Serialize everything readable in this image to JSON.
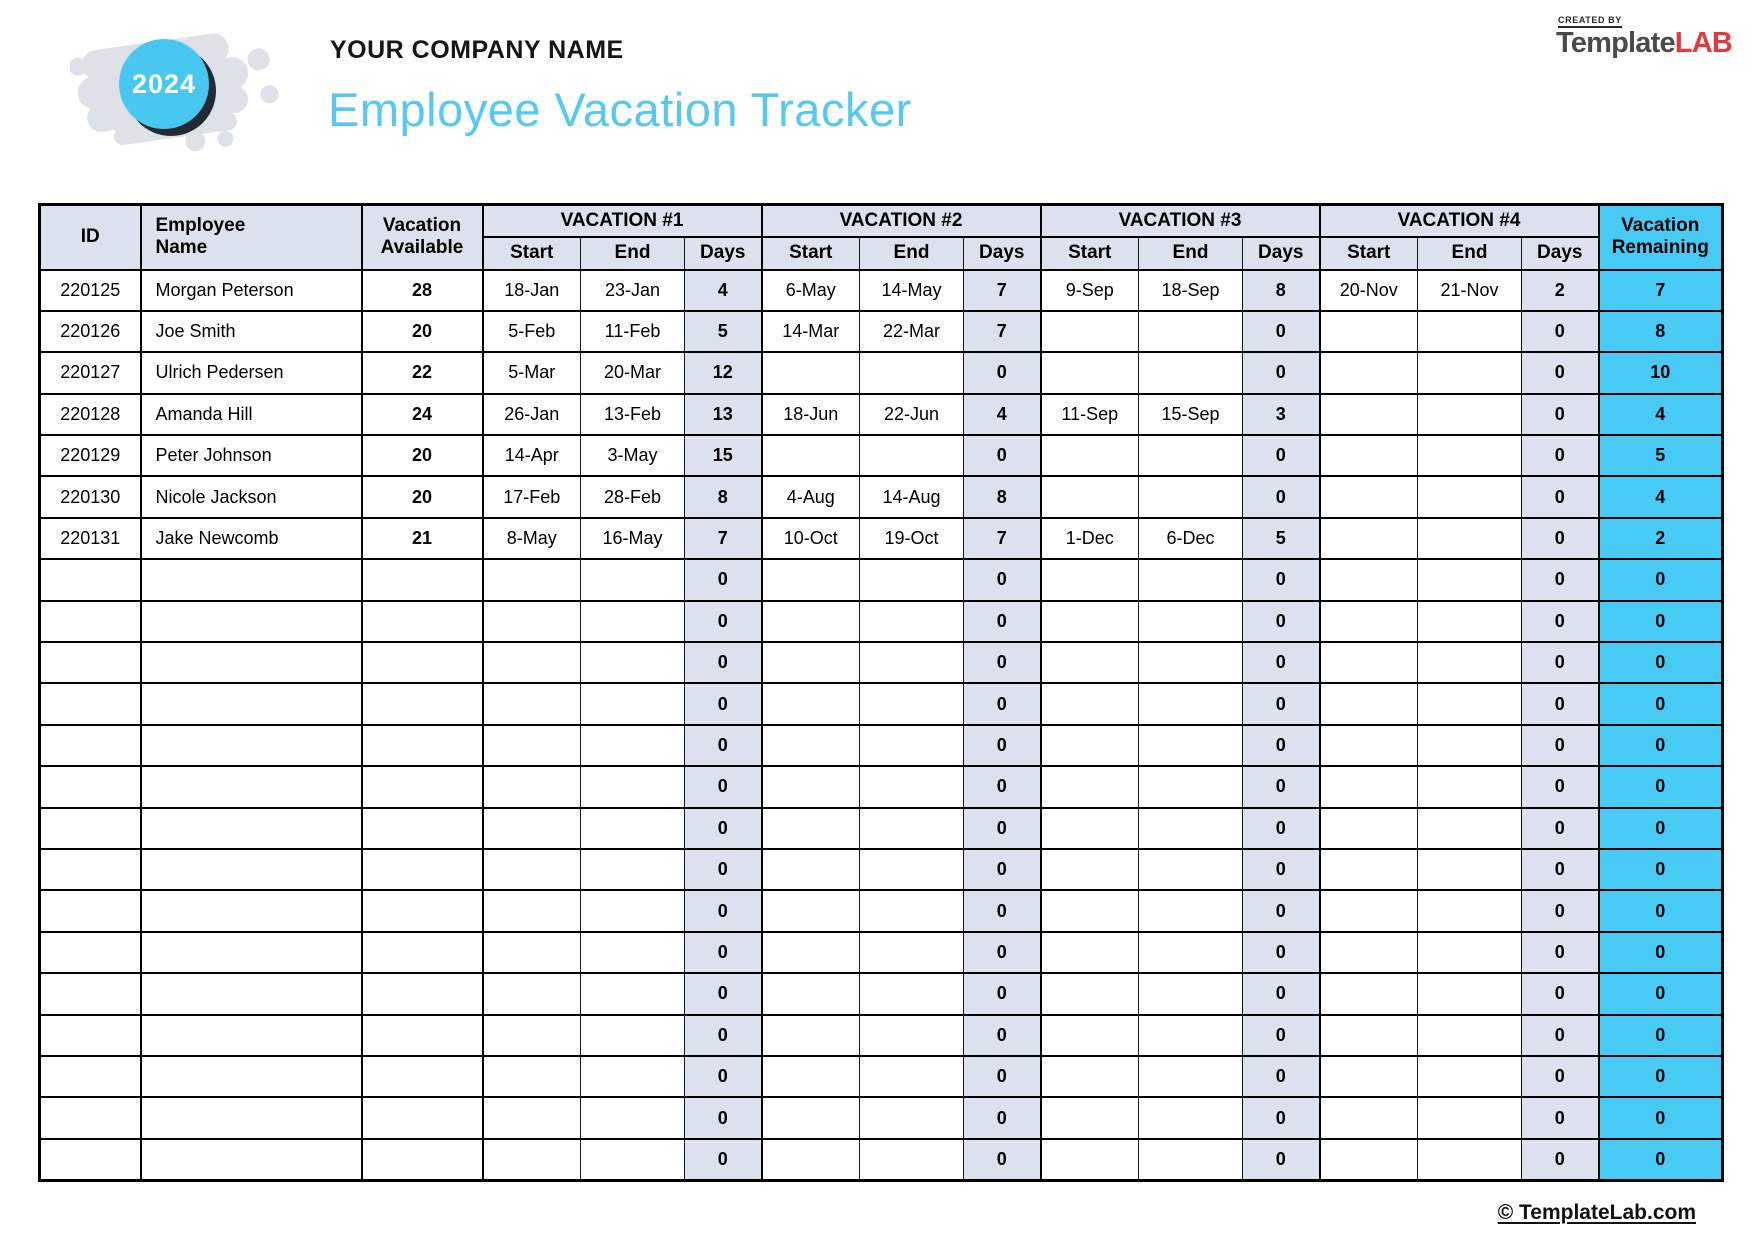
{
  "header": {
    "year_badge": "2024",
    "company_name": "YOUR COMPANY NAME",
    "page_title": "Employee Vacation Tracker",
    "logo": {
      "created_by": "CREATED BY",
      "name_part1": "Template",
      "name_part2": "LAB"
    }
  },
  "table": {
    "headers": {
      "id": "ID",
      "employee": [
        "Employee",
        "Name"
      ],
      "available": [
        "Vacation",
        "Available"
      ],
      "groups": [
        "VACATION #1",
        "VACATION #2",
        "VACATION #3",
        "VACATION #4"
      ],
      "sub": [
        "Start",
        "End",
        "Days"
      ],
      "remaining": [
        "Vacation",
        "Remaining"
      ]
    },
    "rows": [
      {
        "id": "220125",
        "name": "Morgan Peterson",
        "available": "28",
        "v1": [
          "18-Jan",
          "23-Jan",
          "4"
        ],
        "v2": [
          "6-May",
          "14-May",
          "7"
        ],
        "v3": [
          "9-Sep",
          "18-Sep",
          "8"
        ],
        "v4": [
          "20-Nov",
          "21-Nov",
          "2"
        ],
        "remaining": "7"
      },
      {
        "id": "220126",
        "name": "Joe Smith",
        "available": "20",
        "v1": [
          "5-Feb",
          "11-Feb",
          "5"
        ],
        "v2": [
          "14-Mar",
          "22-Mar",
          "7"
        ],
        "v3": [
          "",
          "",
          "0"
        ],
        "v4": [
          "",
          "",
          "0"
        ],
        "remaining": "8"
      },
      {
        "id": "220127",
        "name": "Ulrich Pedersen",
        "available": "22",
        "v1": [
          "5-Mar",
          "20-Mar",
          "12"
        ],
        "v2": [
          "",
          "",
          "0"
        ],
        "v3": [
          "",
          "",
          "0"
        ],
        "v4": [
          "",
          "",
          "0"
        ],
        "remaining": "10"
      },
      {
        "id": "220128",
        "name": "Amanda Hill",
        "available": "24",
        "v1": [
          "26-Jan",
          "13-Feb",
          "13"
        ],
        "v2": [
          "18-Jun",
          "22-Jun",
          "4"
        ],
        "v3": [
          "11-Sep",
          "15-Sep",
          "3"
        ],
        "v4": [
          "",
          "",
          "0"
        ],
        "remaining": "4"
      },
      {
        "id": "220129",
        "name": "Peter Johnson",
        "available": "20",
        "v1": [
          "14-Apr",
          "3-May",
          "15"
        ],
        "v2": [
          "",
          "",
          "0"
        ],
        "v3": [
          "",
          "",
          "0"
        ],
        "v4": [
          "",
          "",
          "0"
        ],
        "remaining": "5"
      },
      {
        "id": "220130",
        "name": "Nicole Jackson",
        "available": "20",
        "v1": [
          "17-Feb",
          "28-Feb",
          "8"
        ],
        "v2": [
          "4-Aug",
          "14-Aug",
          "8"
        ],
        "v3": [
          "",
          "",
          "0"
        ],
        "v4": [
          "",
          "",
          "0"
        ],
        "remaining": "4"
      },
      {
        "id": "220131",
        "name": "Jake Newcomb",
        "available": "21",
        "v1": [
          "8-May",
          "16-May",
          "7"
        ],
        "v2": [
          "10-Oct",
          "19-Oct",
          "7"
        ],
        "v3": [
          "1-Dec",
          "6-Dec",
          "5"
        ],
        "v4": [
          "",
          "",
          "0"
        ],
        "remaining": "2"
      }
    ],
    "empty_rows": {
      "count": 15,
      "days": "0",
      "remaining": "0"
    }
  },
  "footer": {
    "link": "© TemplateLab.com"
  },
  "colors": {
    "accent_cyan": "#47CBF4",
    "header_fill": "#DCE2ED",
    "title_cyan": "#56C8F2",
    "badge_circle": "#48C8F0",
    "badge_shadow": "#242A33",
    "blob_gray": "#DEE1E8",
    "logo_gray": "#4A4A4A",
    "logo_red": "#E23A3E"
  }
}
